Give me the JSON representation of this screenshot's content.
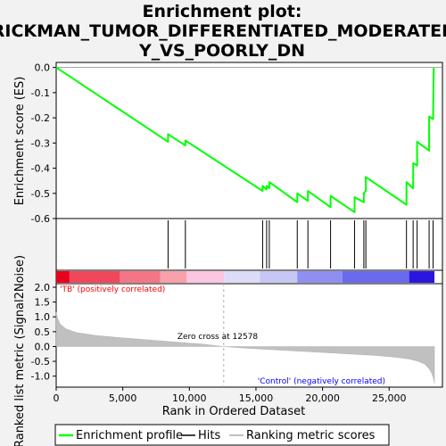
{
  "title_lines": [
    "Enrichment plot:",
    "RICKMAN_TUMOR_DIFFERENTIATED_MODERATEL",
    "Y_VS_POORLY_DN"
  ],
  "colors": {
    "es_line": "#00ff00",
    "hits": "#000000",
    "metric_fill": "#c0c0c0",
    "pos_label": "#ff0000",
    "neg_label": "#0000ff",
    "zero_cross": "#b0b0b0"
  },
  "legend": {
    "enrichment_profile": "Enrichment profile",
    "hits": "Hits",
    "ranking_metric_scores": "Ranking metric scores"
  },
  "annotations": {
    "pos": "'TB' (positively correlated)",
    "neg": "'Control' (negatively correlated)",
    "zero_cross": "Zero cross at 12578"
  },
  "chart_data": [
    {
      "type": "line",
      "ylabel": "Enrichment score (ES)",
      "ylim": [
        -0.6,
        0.02
      ],
      "yticks": [
        0.0,
        -0.1,
        -0.2,
        -0.3,
        -0.4,
        -0.5,
        -0.6
      ],
      "xlim": [
        0,
        29000
      ],
      "series": [
        {
          "name": "Enrichment profile",
          "x": [
            0,
            8400,
            8400,
            9700,
            9700,
            15500,
            15500,
            15800,
            15800,
            16000,
            16000,
            18100,
            18100,
            18900,
            18900,
            20600,
            20600,
            22400,
            22400,
            23100,
            23100,
            23250,
            23250,
            26300,
            26300,
            26800,
            26800,
            27100,
            27100,
            28000,
            28000,
            28300,
            28300,
            28350
          ],
          "y": [
            0.0,
            -0.295,
            -0.265,
            -0.31,
            -0.29,
            -0.49,
            -0.47,
            -0.485,
            -0.47,
            -0.48,
            -0.455,
            -0.535,
            -0.5,
            -0.53,
            -0.49,
            -0.555,
            -0.51,
            -0.575,
            -0.515,
            -0.535,
            -0.5,
            -0.49,
            -0.435,
            -0.545,
            -0.455,
            -0.48,
            -0.38,
            -0.39,
            -0.295,
            -0.33,
            -0.195,
            -0.205,
            -0.2,
            0.0
          ]
        }
      ]
    },
    {
      "type": "hits",
      "name": "Hits",
      "positions": [
        8400,
        9700,
        15500,
        15800,
        16000,
        18100,
        18900,
        20600,
        22400,
        23100,
        23250,
        26300,
        26800,
        27100,
        28000,
        28300
      ]
    },
    {
      "type": "area",
      "name": "Ranking metric scores",
      "xlabel": "Rank in Ordered Dataset",
      "ylabel": "Ranked list metric (Signal2Noise)",
      "xlim": [
        0,
        29000
      ],
      "ylim": [
        -1.25,
        2.0
      ],
      "xticks": [
        0,
        5000,
        10000,
        15000,
        20000,
        25000
      ],
      "xtick_labels": [
        "0",
        "5,000",
        "10,000",
        "15,000",
        "20,000",
        "25,000"
      ],
      "yticks": [
        2.0,
        1.5,
        1.0,
        0.5,
        0.0,
        -0.5,
        -1.0
      ],
      "zero_cross": 12578,
      "x": [
        0,
        100,
        300,
        700,
        1500,
        3000,
        5000,
        7000,
        9000,
        11000,
        12578,
        14000,
        16000,
        18000,
        20000,
        22000,
        24000,
        25500,
        26500,
        27200,
        27700,
        28000,
        28200,
        28350,
        28400
      ],
      "y": [
        1.15,
        0.95,
        0.75,
        0.6,
        0.47,
        0.37,
        0.29,
        0.22,
        0.15,
        0.08,
        0.0,
        -0.05,
        -0.1,
        -0.15,
        -0.2,
        -0.25,
        -0.3,
        -0.36,
        -0.42,
        -0.5,
        -0.6,
        -0.75,
        -0.9,
        -1.1,
        -1.25
      ]
    },
    {
      "type": "heatmap",
      "name": "rank color bar",
      "segments": [
        {
          "from": 0,
          "to": 1000,
          "color": "#e8001c"
        },
        {
          "from": 1000,
          "to": 4800,
          "color": "#f0485a"
        },
        {
          "from": 4800,
          "to": 7800,
          "color": "#f47585"
        },
        {
          "from": 7800,
          "to": 9800,
          "color": "#f8a0ab"
        },
        {
          "from": 9800,
          "to": 12600,
          "color": "#fbc7e0"
        },
        {
          "from": 12600,
          "to": 15300,
          "color": "#dcdcf8"
        },
        {
          "from": 15300,
          "to": 18100,
          "color": "#c7c7f5"
        },
        {
          "from": 18100,
          "to": 21500,
          "color": "#8f8ff2"
        },
        {
          "from": 21500,
          "to": 26500,
          "color": "#6a6aee"
        },
        {
          "from": 26500,
          "to": 28400,
          "color": "#2a16dc"
        }
      ]
    }
  ]
}
